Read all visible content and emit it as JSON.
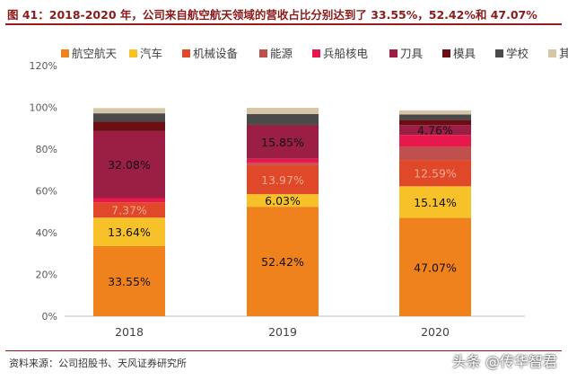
{
  "title": "图 41：2018-2020 年，公司来自航空航天领域的营收占比分别达到了 33.55%，52.42%和 47.07%",
  "source": "资料来源：公司招股书、天风证券研究所",
  "watermark": "头条 @传华智君",
  "chart_data": {
    "type": "bar",
    "stacked": true,
    "categories": [
      "2018",
      "2019",
      "2020"
    ],
    "ylim": [
      0,
      120
    ],
    "yticks": [
      "0%",
      "20%",
      "40%",
      "60%",
      "80%",
      "100%",
      "120%"
    ],
    "grid": false,
    "legend_position": "top",
    "series": [
      {
        "name": "航空航天",
        "color": "#f0821e",
        "values": [
          33.55,
          52.42,
          47.07
        ],
        "labels": [
          "33.55%",
          "52.42%",
          "47.07%"
        ]
      },
      {
        "name": "汽车",
        "color": "#f7c12a",
        "values": [
          13.64,
          6.03,
          15.14
        ],
        "labels": [
          "13.64%",
          "6.03%",
          "15.14%"
        ]
      },
      {
        "name": "机械设备",
        "color": "#e0482a",
        "values": [
          7.37,
          13.97,
          12.59
        ],
        "labels": [
          "7.37%",
          "13.97%",
          "12.59%"
        ]
      },
      {
        "name": "能源",
        "color": "#c0504d",
        "values": [
          0.0,
          1.0,
          6.5
        ],
        "labels": [
          "",
          "",
          ""
        ]
      },
      {
        "name": "兵船核电",
        "color": "#e8184e",
        "values": [
          2.0,
          2.0,
          5.5
        ],
        "labels": [
          "",
          "",
          ""
        ]
      },
      {
        "name": "刀具",
        "color": "#9b1f45",
        "values": [
          32.08,
          15.85,
          4.76
        ],
        "labels": [
          "32.08%",
          "15.85%",
          "4.76%"
        ]
      },
      {
        "name": "模具",
        "color": "#6b0e14",
        "values": [
          4.5,
          0.5,
          2.5
        ],
        "labels": [
          "",
          "",
          ""
        ]
      },
      {
        "name": "学校",
        "color": "#4a4a4a",
        "values": [
          4.0,
          5.0,
          2.5
        ],
        "labels": [
          "",
          "",
          ""
        ]
      },
      {
        "name": "其他",
        "color": "#d6c6a8",
        "values": [
          2.5,
          3.0,
          2.0
        ],
        "labels": [
          "",
          "",
          ""
        ]
      }
    ]
  }
}
